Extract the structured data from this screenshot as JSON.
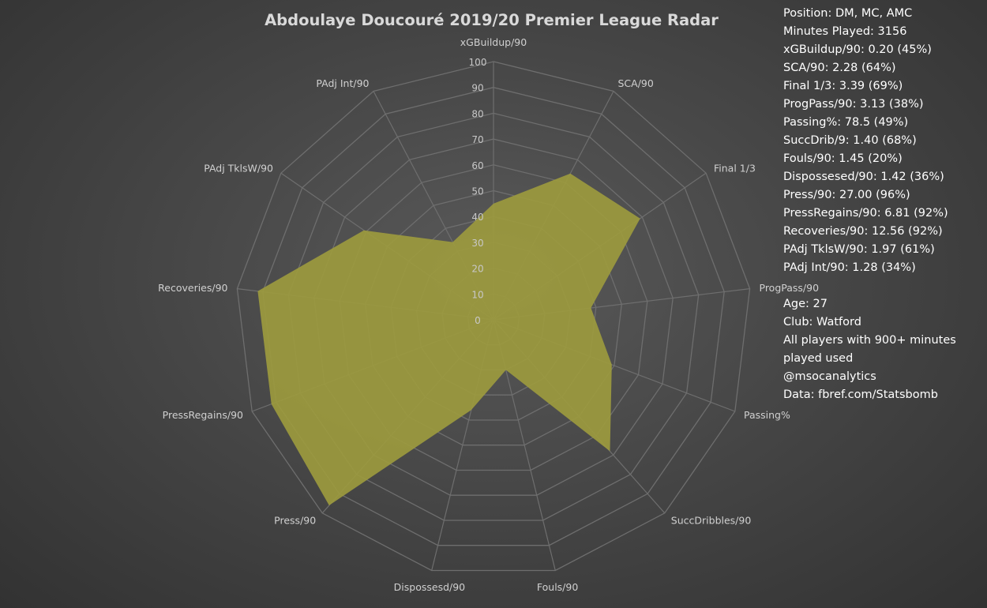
{
  "chart_data": {
    "type": "radar",
    "title": "Abdoulaye Doucouré 2019/20 Premier League Radar",
    "axes": [
      "xGBuildup/90",
      "SCA/90",
      "Final 1/3",
      "ProgPass/90",
      "Passing%",
      "SuccDribbles/90",
      "Fouls/90",
      "Dispossesd/90",
      "Press/90",
      "PressRegains/90",
      "Recoveries/90",
      "PAdj TklsW/90",
      "PAdj Int/90"
    ],
    "tick_labels": [
      "0",
      "10",
      "20",
      "30",
      "40",
      "50",
      "60",
      "70",
      "80",
      "90",
      "100"
    ],
    "rlim": [
      0,
      100
    ],
    "series": [
      {
        "values": [
          45,
          64,
          69,
          38,
          49,
          68,
          20,
          36,
          96,
          92,
          92,
          61,
          34
        ]
      }
    ],
    "fill_color": "#9c9a3e",
    "grid_color": "#6e6e6e",
    "grid": true
  },
  "info": {
    "lines": [
      "Position: DM, MC, AMC",
      "Minutes Played: 3156",
      "xGBuildup/90: 0.20 (45%)",
      "SCA/90: 2.28 (64%)",
      "Final 1/3: 3.39 (69%)",
      "ProgPass/90: 3.13 (38%)",
      "Passing%: 78.5 (49%)",
      "SuccDrib/9: 1.40 (68%)",
      "Fouls/90: 1.45 (20%)",
      "Dispossesed/90: 1.42 (36%)",
      "Press/90: 27.00 (96%)",
      "PressRegains/90: 6.81 (92%)",
      "Recoveries/90: 12.56 (92%)",
      "PAdj TklsW/90: 1.97 (61%)",
      "PAdj Int/90: 1.28 (34%)"
    ],
    "extra_lines": [
      "Age: 27",
      "Club: Watford",
      "All players with 900+ minutes",
      "played used",
      "@msocanalytics",
      "Data: fbref.com/Statsbomb"
    ]
  }
}
